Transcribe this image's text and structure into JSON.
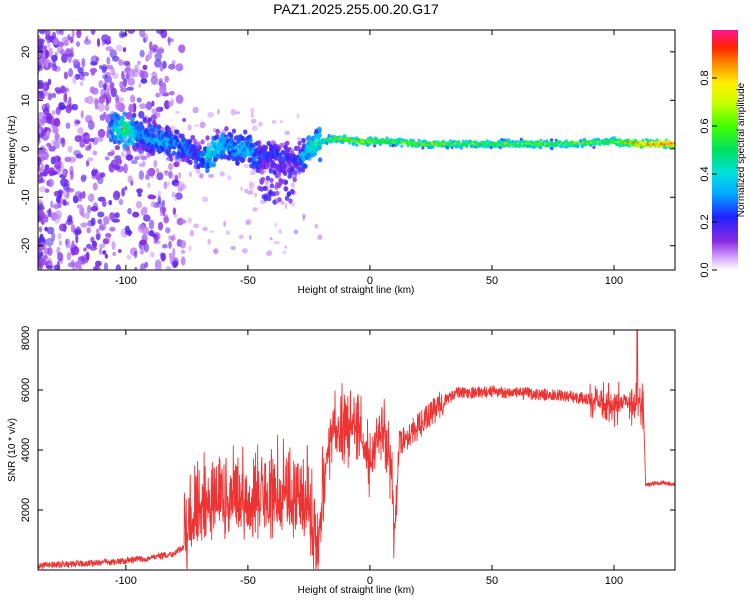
{
  "chart_data": [
    {
      "type": "heatmap",
      "title": "PAZ1.2025.255.00.20.G17",
      "xlabel": "Height of straight line (km)",
      "ylabel": "Frequency (Hz)",
      "xlim": [
        -136,
        125
      ],
      "ylim": [
        -25,
        24.5
      ],
      "xticks": [
        -100,
        -50,
        0,
        50,
        100
      ],
      "yticks": [
        -20,
        -10,
        0,
        10,
        20
      ],
      "colorbar": {
        "label": "Normalized spectral amplitude",
        "range": [
          0,
          1
        ],
        "ticks": [
          0.0,
          0.2,
          0.4,
          0.6,
          0.8
        ]
      },
      "ridge": {
        "x": [
          -105,
          -100,
          -95,
          -90,
          -85,
          -80,
          -75,
          -70,
          -65,
          -60,
          -55,
          -50,
          -45,
          -40,
          -35,
          -30,
          -25,
          -20,
          -15,
          -10,
          -5,
          0,
          10,
          20,
          40,
          60,
          80,
          100,
          110,
          125
        ],
        "y": [
          4,
          4,
          3,
          2.5,
          1.5,
          1,
          0,
          -2,
          -1,
          1,
          0,
          0,
          -2,
          -1,
          -2,
          -3,
          0,
          1.5,
          2,
          2,
          1.5,
          1.5,
          1.5,
          1,
          1,
          1,
          1,
          1.5,
          1,
          1
        ],
        "amplitude": [
          0.35,
          0.55,
          0.3,
          0.3,
          0.35,
          0.3,
          0.25,
          0.25,
          0.4,
          0.35,
          0.3,
          0.35,
          0.25,
          0.2,
          0.2,
          0.2,
          0.4,
          0.45,
          0.55,
          0.6,
          0.6,
          0.6,
          0.55,
          0.6,
          0.55,
          0.55,
          0.55,
          0.55,
          0.8,
          0.9
        ]
      }
    },
    {
      "type": "line",
      "xlabel": "Height of straight line (km)",
      "ylabel": "SNR (10 * v/v)",
      "xlim": [
        -136,
        125
      ],
      "ylim": [
        0,
        8000
      ],
      "xticks": [
        -100,
        -50,
        0,
        50,
        100
      ],
      "yticks": [
        2000,
        4000,
        6000,
        8000
      ],
      "series": [
        {
          "name": "SNR",
          "color": "#ee3333",
          "x": [
            -136,
            -120,
            -100,
            -90,
            -80,
            -76,
            -70,
            -60,
            -50,
            -40,
            -30,
            -25,
            -22,
            -18,
            -15,
            -10,
            -5,
            0,
            5,
            9,
            10,
            12,
            20,
            25,
            30,
            35,
            50,
            60,
            70,
            80,
            90,
            95,
            100,
            105,
            108,
            110,
            112,
            113,
            120,
            125
          ],
          "y": [
            150,
            200,
            300,
            400,
            550,
            800,
            1500,
            1800,
            1900,
            2000,
            2000,
            1800,
            300,
            3800,
            4500,
            4900,
            4800,
            3500,
            4800,
            3000,
            900,
            4200,
            4800,
            5200,
            5600,
            5900,
            5950,
            5900,
            5850,
            5800,
            5700,
            5600,
            5500,
            5700,
            5400,
            5500,
            5500,
            2850,
            2900,
            2850
          ]
        }
      ]
    }
  ]
}
